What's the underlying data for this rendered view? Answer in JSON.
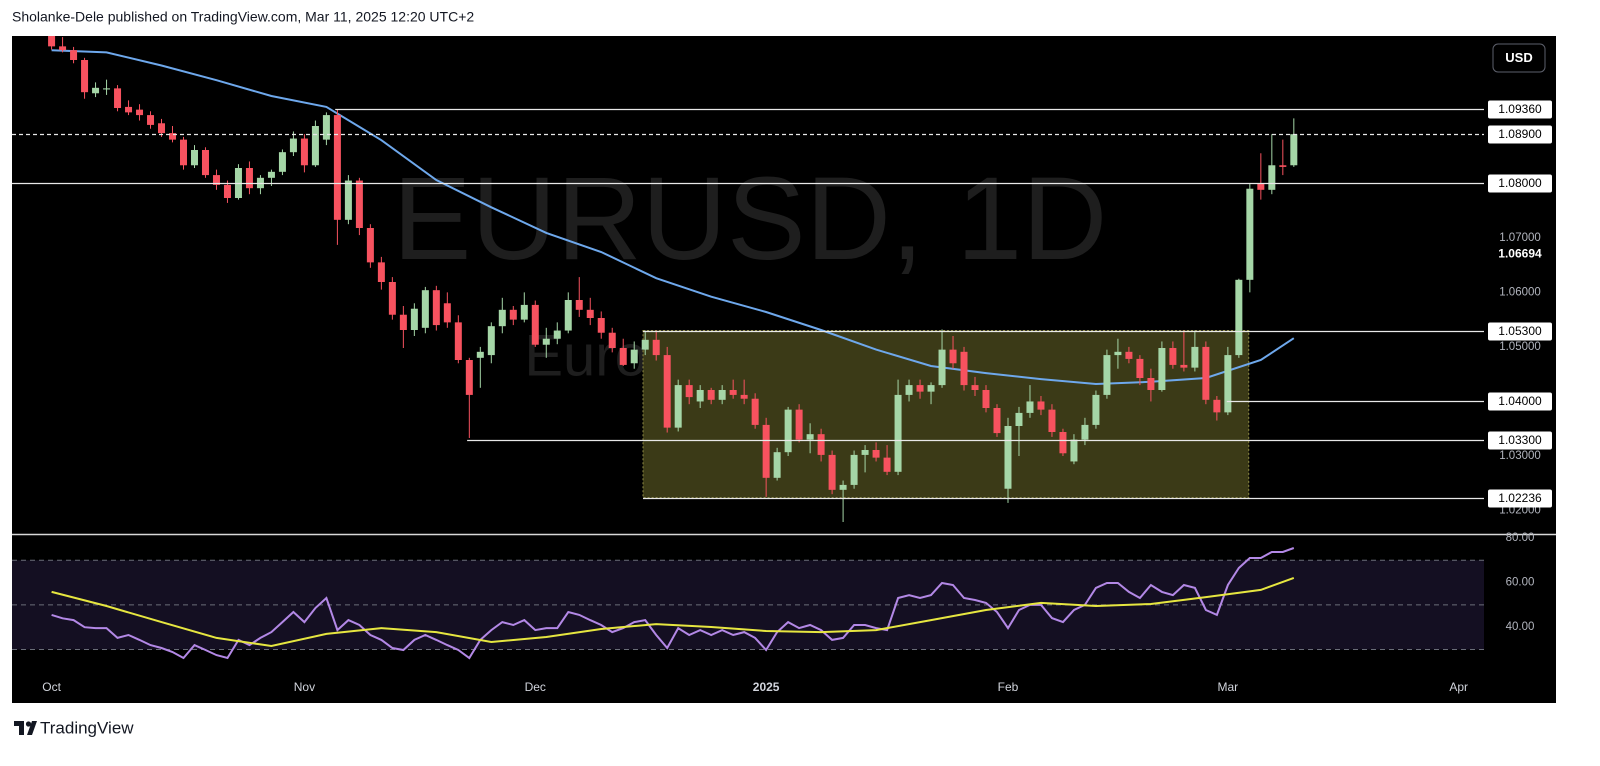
{
  "header": "Sholanke-Dele published on TradingView.com, Mar 11, 2025 12:20 UTC+2",
  "footer": "TradingView",
  "currency": "USD",
  "watermark": "EURUSD, 1D",
  "watermark_sub": "Euro / U.S. Dollar",
  "chart_data": [
    {
      "type": "candlestick",
      "up_color": "#a5d6a7",
      "down_color": "#f7525f",
      "grid": false,
      "xlim": [
        -3.6,
        130.3
      ],
      "xticks": [
        {
          "value": 0,
          "label": "Oct"
        },
        {
          "value": 23,
          "label": "Nov"
        },
        {
          "value": 44,
          "label": "Dec"
        },
        {
          "value": 65,
          "label": "2025",
          "bold": true
        },
        {
          "value": 87,
          "label": "Feb"
        },
        {
          "value": 107,
          "label": "Mar"
        },
        {
          "value": 128,
          "label": "Apr"
        }
      ],
      "ylim": [
        1.0157,
        1.107
      ],
      "yticks": [
        {
          "value": 1.07,
          "label": "1.07000"
        },
        {
          "value": 1.06,
          "label": "1.06000"
        },
        {
          "value": 1.05,
          "label": "1.05000"
        },
        {
          "value": 1.03,
          "label": "1.03000"
        },
        {
          "value": 1.02,
          "label": "1.02000"
        }
      ],
      "price_marker": {
        "value": 1.06694,
        "label": "1.06694"
      },
      "levels": [
        {
          "value": 1.0936,
          "label": "1.09360",
          "from": 25.8
        },
        {
          "value": 1.089,
          "label": "1.08900",
          "dashed": true
        },
        {
          "value": 1.08,
          "label": "1.08000"
        },
        {
          "value": 1.053,
          "label": "1.05300",
          "from": 53.8
        },
        {
          "value": 1.04,
          "label": "1.04000",
          "from": 106.9
        },
        {
          "value": 1.033,
          "label": "1.03300",
          "from": 37.8
        },
        {
          "value": 1.02236,
          "label": "1.02236",
          "from": 53.8
        }
      ],
      "zone": {
        "x": [
          53.8,
          108.9
        ],
        "y": [
          1.02236,
          1.053
        ],
        "color": "#3b3a17",
        "border": "#8f8c45"
      },
      "open": [
        1.107,
        1.1051,
        1.1044,
        1.1026,
        1.0965,
        1.0972,
        1.0974,
        1.094,
        1.0935,
        1.0925,
        1.091,
        1.0892,
        1.088,
        1.0833,
        1.0861,
        1.0815,
        1.0797,
        1.0773,
        1.0828,
        1.0791,
        1.081,
        1.0821,
        1.0857,
        1.0882,
        1.0833,
        1.088,
        1.0925,
        1.0733,
        1.0805,
        1.0718,
        1.0655,
        1.0619,
        1.0559,
        1.0531,
        1.0535,
        1.0604,
        1.058,
        1.0545,
        1.0476,
        1.048,
        1.0485,
        1.0538,
        1.0568,
        1.055,
        1.0577,
        1.0504,
        1.0515,
        1.053,
        1.0586,
        1.0568,
        1.0553,
        1.0526,
        1.0498,
        1.047,
        1.0495,
        1.0513,
        1.0485,
        1.0352,
        1.043,
        1.04,
        1.0421,
        1.0403,
        1.0421,
        1.0412,
        1.0405,
        1.0357,
        1.026,
        1.0307,
        1.0385,
        1.033,
        1.034,
        1.0302,
        1.0238,
        1.0247,
        1.0302,
        1.0311,
        1.0297,
        1.0271,
        1.0412,
        1.043,
        1.0418,
        1.043,
        1.0495,
        1.0491,
        1.043,
        1.0421,
        1.0388,
        1.024,
        1.0355,
        1.0379,
        1.04,
        1.0385,
        1.0344,
        1.029,
        1.033,
        1.0357,
        1.0412,
        1.0485,
        1.0491,
        1.0478,
        1.0443,
        1.0421,
        1.0498,
        1.0467,
        1.0462,
        1.05,
        1.0403,
        1.038,
        1.0485,
        1.0623,
        1.08,
        1.0788,
        1.0833,
        1.0833
      ],
      "high": [
        1.1075,
        1.1068,
        1.105,
        1.103,
        1.0985,
        1.099,
        1.098,
        1.0952,
        1.0945,
        1.0932,
        1.0918,
        1.0905,
        1.0885,
        1.087,
        1.0866,
        1.0825,
        1.0805,
        1.0835,
        1.084,
        1.0815,
        1.0825,
        1.0862,
        1.0895,
        1.089,
        1.0915,
        1.093,
        1.0936,
        1.0815,
        1.081,
        1.0725,
        1.0665,
        1.0628,
        1.0575,
        1.058,
        1.061,
        1.0612,
        1.06,
        1.0558,
        1.048,
        1.05,
        1.0545,
        1.059,
        1.0575,
        1.06,
        1.0585,
        1.0535,
        1.0545,
        1.06,
        1.0628,
        1.059,
        1.0565,
        1.0535,
        1.0515,
        1.051,
        1.053,
        1.053,
        1.05,
        1.044,
        1.044,
        1.043,
        1.0425,
        1.043,
        1.044,
        1.044,
        1.0415,
        1.037,
        1.0315,
        1.039,
        1.0395,
        1.036,
        1.035,
        1.031,
        1.0255,
        1.031,
        1.032,
        1.0325,
        1.032,
        1.044,
        1.044,
        1.044,
        1.0435,
        1.0532,
        1.052,
        1.05,
        1.0445,
        1.043,
        1.0395,
        1.037,
        1.039,
        1.043,
        1.041,
        1.0395,
        1.035,
        1.034,
        1.037,
        1.042,
        1.0495,
        1.0515,
        1.05,
        1.0485,
        1.046,
        1.051,
        1.051,
        1.053,
        1.053,
        1.051,
        1.041,
        1.05,
        1.0625,
        1.08,
        1.0855,
        1.089,
        1.088,
        1.0919
      ],
      "low": [
        1.1045,
        1.104,
        1.102,
        1.0955,
        1.0958,
        1.0962,
        1.0932,
        1.0925,
        1.0915,
        1.09,
        1.0885,
        1.0875,
        1.0825,
        1.0828,
        1.081,
        1.0788,
        1.0764,
        1.077,
        1.078,
        1.078,
        1.0795,
        1.0815,
        1.085,
        1.082,
        1.083,
        1.087,
        1.0687,
        1.0725,
        1.0705,
        1.0645,
        1.0605,
        1.055,
        1.0498,
        1.052,
        1.0525,
        1.053,
        1.0535,
        1.047,
        1.0333,
        1.0425,
        1.047,
        1.0525,
        1.054,
        1.0545,
        1.05,
        1.048,
        1.0505,
        1.0525,
        1.0555,
        1.054,
        1.0515,
        1.049,
        1.0465,
        1.046,
        1.0485,
        1.0475,
        1.0343,
        1.0345,
        1.0395,
        1.0388,
        1.0395,
        1.0395,
        1.0405,
        1.0395,
        1.035,
        1.0225,
        1.0255,
        1.03,
        1.0325,
        1.0305,
        1.029,
        1.023,
        1.0179,
        1.024,
        1.027,
        1.029,
        1.0265,
        1.0265,
        1.04,
        1.0405,
        1.0395,
        1.0425,
        1.046,
        1.042,
        1.041,
        1.038,
        1.0335,
        1.0214,
        1.03,
        1.037,
        1.0375,
        1.0335,
        1.03,
        1.0285,
        1.032,
        1.035,
        1.0405,
        1.046,
        1.047,
        1.043,
        1.04,
        1.0418,
        1.046,
        1.0455,
        1.0455,
        1.0395,
        1.0365,
        1.0375,
        1.048,
        1.06,
        1.077,
        1.078,
        1.0815,
        1.083
      ],
      "close": [
        1.1051,
        1.1044,
        1.1026,
        1.0967,
        1.0975,
        1.0974,
        1.0938,
        1.093,
        1.0925,
        1.0907,
        1.0892,
        1.088,
        1.0833,
        1.0861,
        1.0815,
        1.0797,
        1.0773,
        1.0828,
        1.0791,
        1.081,
        1.0821,
        1.0857,
        1.0882,
        1.0833,
        1.0905,
        1.0925,
        1.0733,
        1.0805,
        1.0718,
        1.0655,
        1.0619,
        1.0559,
        1.0531,
        1.057,
        1.0604,
        1.054,
        1.0545,
        1.0476,
        1.0412,
        1.0491,
        1.0538,
        1.0568,
        1.055,
        1.0577,
        1.0504,
        1.0515,
        1.053,
        1.0586,
        1.0568,
        1.0553,
        1.0526,
        1.0498,
        1.0467,
        1.0495,
        1.0513,
        1.0485,
        1.0352,
        1.043,
        1.0408,
        1.0421,
        1.0403,
        1.0421,
        1.0412,
        1.0405,
        1.0357,
        1.026,
        1.0307,
        1.0385,
        1.033,
        1.034,
        1.0302,
        1.0238,
        1.0247,
        1.0302,
        1.0311,
        1.0297,
        1.0271,
        1.0412,
        1.043,
        1.0418,
        1.043,
        1.0495,
        1.047,
        1.043,
        1.0421,
        1.0388,
        1.0342,
        1.0355,
        1.0379,
        1.04,
        1.0385,
        1.0344,
        1.0305,
        1.033,
        1.0357,
        1.0412,
        1.0485,
        1.0491,
        1.0478,
        1.0443,
        1.0421,
        1.0498,
        1.0467,
        1.0462,
        1.05,
        1.0403,
        1.038,
        1.0485,
        1.0623,
        1.079,
        1.0788,
        1.0833,
        1.083,
        1.089
      ],
      "ma": {
        "color": "#6ea8ec",
        "x": [
          0,
          5,
          10,
          15,
          20,
          25,
          30,
          35,
          40,
          45,
          50,
          55,
          60,
          65,
          70,
          75,
          80,
          85,
          90,
          95,
          100,
          105,
          110,
          113
        ],
        "values": [
          1.1044,
          1.104,
          1.1016,
          1.0989,
          1.096,
          1.094,
          1.0879,
          1.0806,
          1.0756,
          1.0709,
          1.0674,
          1.0626,
          1.0592,
          1.0564,
          1.0531,
          1.0495,
          1.0465,
          1.0452,
          1.0441,
          1.0432,
          1.0436,
          1.0443,
          1.0476,
          1.0516
        ]
      }
    },
    {
      "type": "line",
      "ylim": [
        18.6,
        81.3
      ],
      "yticks": [
        {
          "value": 80,
          "label": "80.00"
        },
        {
          "value": 60,
          "label": "60.00"
        },
        {
          "value": 40,
          "label": "40.00"
        }
      ],
      "band": [
        30,
        70
      ],
      "band_color": "#140f22",
      "levels": [
        70,
        50,
        30
      ],
      "series": [
        {
          "color": "#b388e6",
          "values": [
            45.5,
            44,
            43.2,
            40,
            39.6,
            39.6,
            35.2,
            36.5,
            34.3,
            32,
            30.7,
            28.9,
            26.2,
            32,
            29.8,
            27.5,
            26.2,
            34.3,
            32,
            35.2,
            37.8,
            42.3,
            46.8,
            42.3,
            48.6,
            53.1,
            38.7,
            43.2,
            41,
            36.5,
            34.3,
            30.7,
            29.8,
            34.3,
            36.5,
            34.3,
            32,
            29.8,
            26.2,
            34.3,
            38.7,
            42.3,
            41,
            43.2,
            38.7,
            39.6,
            39.6,
            46.8,
            45.5,
            43.2,
            41,
            37.8,
            39.6,
            42.3,
            43.2,
            36.5,
            30.7,
            39.6,
            36.5,
            38.7,
            36.5,
            38.7,
            36.5,
            37.8,
            35.2,
            29.8,
            37.8,
            42.3,
            39.6,
            41,
            38.7,
            34.3,
            35.2,
            41,
            41,
            39.6,
            38.7,
            53.1,
            54.4,
            53.1,
            54.4,
            59.8,
            58.9,
            53.1,
            52.2,
            50.9,
            46.8,
            39.6,
            47.7,
            50,
            50,
            44.1,
            42.3,
            47.7,
            50,
            57.6,
            59.8,
            59.8,
            55.8,
            53.1,
            58.9,
            55.8,
            54.4,
            58.9,
            57.6,
            47.7,
            45.5,
            58.9,
            66.5,
            71,
            71,
            73.7,
            73.7,
            75.5
          ]
        },
        {
          "color": "#e6e640",
          "x": [
            0,
            5,
            10,
            15,
            20,
            25,
            30,
            35,
            40,
            45,
            50,
            55,
            60,
            65,
            70,
            75,
            80,
            85,
            90,
            95,
            100,
            105,
            110,
            113
          ],
          "values": [
            55.8,
            49.5,
            42.3,
            35.2,
            31.6,
            37,
            39.6,
            37.8,
            33.4,
            35.6,
            39.2,
            41.4,
            40.1,
            38.3,
            37.8,
            38.7,
            43.2,
            47.7,
            50.9,
            49.5,
            50.4,
            53.5,
            56.7,
            62.1
          ]
        }
      ]
    }
  ]
}
